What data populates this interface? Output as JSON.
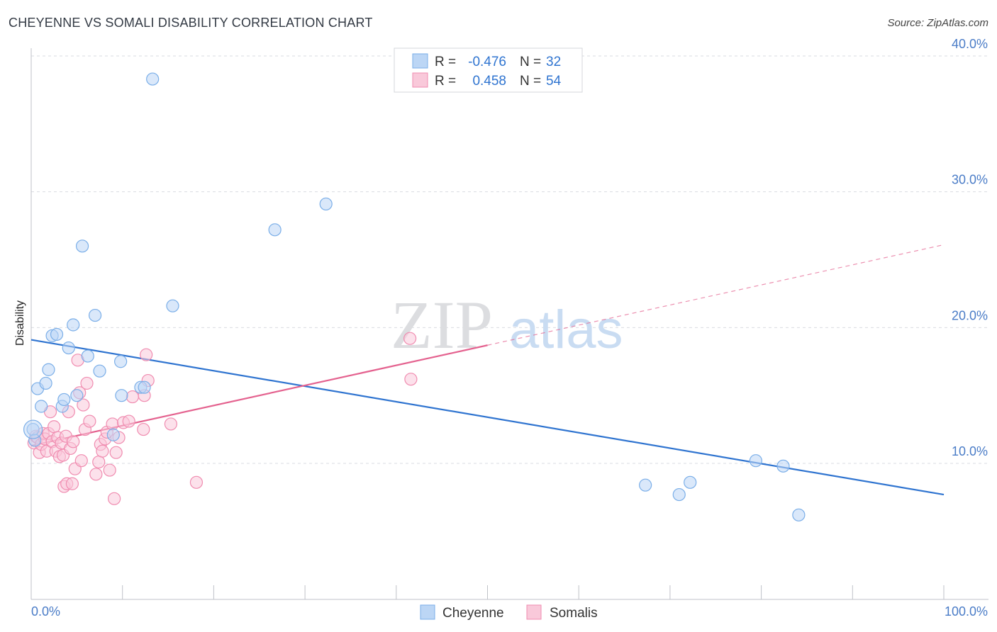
{
  "title": "CHEYENNE VS SOMALI DISABILITY CORRELATION CHART",
  "source": "Source: ZipAtlas.com",
  "watermark": {
    "zip": "ZIP",
    "atlas": "atlas"
  },
  "chart_data": {
    "type": "scatter",
    "title": "CHEYENNE VS SOMALI DISABILITY CORRELATION CHART",
    "xlabel": "",
    "ylabel": "Disability",
    "xlim": [
      0,
      100
    ],
    "ylim": [
      0,
      41.5
    ],
    "x_tick_labels": [
      {
        "value": 0,
        "label": "0.0%"
      },
      {
        "value": 100,
        "label": "100.0%"
      }
    ],
    "y_ticks": [
      {
        "value": 10,
        "label": "10.0%"
      },
      {
        "value": 20,
        "label": "20.0%"
      },
      {
        "value": 30,
        "label": "30.0%"
      },
      {
        "value": 40,
        "label": "40.0%"
      }
    ],
    "x_minor_ticks": [
      0,
      10,
      20,
      30,
      40,
      50,
      60,
      70,
      80,
      90,
      100
    ],
    "legend": {
      "entries": [
        {
          "series": "Cheyenne",
          "r_label": "R =",
          "r_value": "-0.476",
          "n_label": "N =",
          "n_value": "32"
        },
        {
          "series": "Somalis",
          "r_label": "R =",
          "r_value": "0.458",
          "n_label": "N =",
          "n_value": "54"
        }
      ]
    },
    "series": [
      {
        "name": "Cheyenne",
        "color": "#7aaee8",
        "fill": "#bcd6f5",
        "line_color": "#2f74d0",
        "trend": {
          "x0": 0,
          "y0": 19.1,
          "x1": 100,
          "y1": 7.7,
          "solid_to": 100
        },
        "points": [
          [
            0.2,
            12.5
          ],
          [
            0.7,
            15.5
          ],
          [
            1.1,
            14.2
          ],
          [
            1.6,
            15.9
          ],
          [
            1.9,
            16.9
          ],
          [
            2.3,
            19.4
          ],
          [
            2.8,
            19.5
          ],
          [
            3.4,
            14.2
          ],
          [
            3.6,
            14.7
          ],
          [
            4.1,
            18.5
          ],
          [
            4.6,
            20.2
          ],
          [
            5.0,
            15.0
          ],
          [
            5.6,
            26.0
          ],
          [
            6.2,
            17.9
          ],
          [
            7.0,
            20.9
          ],
          [
            7.5,
            16.8
          ],
          [
            9.0,
            12.1
          ],
          [
            9.8,
            17.5
          ],
          [
            9.9,
            15.0
          ],
          [
            12.0,
            15.6
          ],
          [
            12.4,
            15.6
          ],
          [
            13.3,
            38.3
          ],
          [
            15.5,
            21.6
          ],
          [
            26.7,
            27.2
          ],
          [
            32.3,
            29.1
          ],
          [
            67.3,
            8.4
          ],
          [
            71.0,
            7.7
          ],
          [
            72.2,
            8.6
          ],
          [
            79.4,
            10.2
          ],
          [
            82.4,
            9.8
          ],
          [
            84.1,
            6.2
          ],
          [
            0.4,
            11.7
          ]
        ]
      },
      {
        "name": "Somalis",
        "color": "#f08cb0",
        "fill": "#f9c9da",
        "line_color": "#e4628f",
        "trend": {
          "x0": 0,
          "y0": 11.3,
          "x1": 100,
          "y1": 26.1,
          "solid_to": 50
        },
        "points": [
          [
            0.3,
            11.5
          ],
          [
            0.5,
            12.0
          ],
          [
            0.7,
            11.9
          ],
          [
            0.9,
            10.8
          ],
          [
            1.1,
            11.4
          ],
          [
            1.3,
            12.2
          ],
          [
            1.5,
            11.8
          ],
          [
            1.7,
            10.9
          ],
          [
            1.9,
            12.2
          ],
          [
            2.1,
            13.8
          ],
          [
            2.3,
            11.6
          ],
          [
            2.5,
            12.7
          ],
          [
            2.7,
            10.9
          ],
          [
            2.9,
            11.9
          ],
          [
            3.1,
            10.5
          ],
          [
            3.3,
            11.5
          ],
          [
            3.5,
            10.6
          ],
          [
            3.6,
            8.3
          ],
          [
            3.8,
            12.0
          ],
          [
            3.9,
            8.5
          ],
          [
            4.1,
            13.8
          ],
          [
            4.3,
            11.1
          ],
          [
            4.5,
            8.5
          ],
          [
            4.6,
            11.6
          ],
          [
            4.8,
            9.6
          ],
          [
            5.1,
            17.6
          ],
          [
            5.3,
            15.2
          ],
          [
            5.5,
            10.2
          ],
          [
            5.7,
            14.3
          ],
          [
            5.9,
            12.5
          ],
          [
            6.1,
            15.9
          ],
          [
            6.4,
            13.1
          ],
          [
            7.1,
            9.2
          ],
          [
            7.4,
            10.1
          ],
          [
            7.6,
            11.4
          ],
          [
            7.8,
            10.9
          ],
          [
            8.1,
            11.8
          ],
          [
            8.3,
            12.3
          ],
          [
            8.6,
            9.5
          ],
          [
            8.9,
            12.9
          ],
          [
            9.1,
            7.4
          ],
          [
            9.3,
            10.8
          ],
          [
            9.6,
            11.9
          ],
          [
            10.1,
            13.0
          ],
          [
            10.7,
            13.1
          ],
          [
            11.1,
            14.9
          ],
          [
            12.3,
            12.5
          ],
          [
            12.6,
            18.0
          ],
          [
            12.8,
            16.1
          ],
          [
            12.4,
            15.0
          ],
          [
            15.3,
            12.9
          ],
          [
            18.1,
            8.6
          ],
          [
            41.6,
            16.2
          ],
          [
            41.5,
            19.2
          ]
        ]
      }
    ]
  }
}
